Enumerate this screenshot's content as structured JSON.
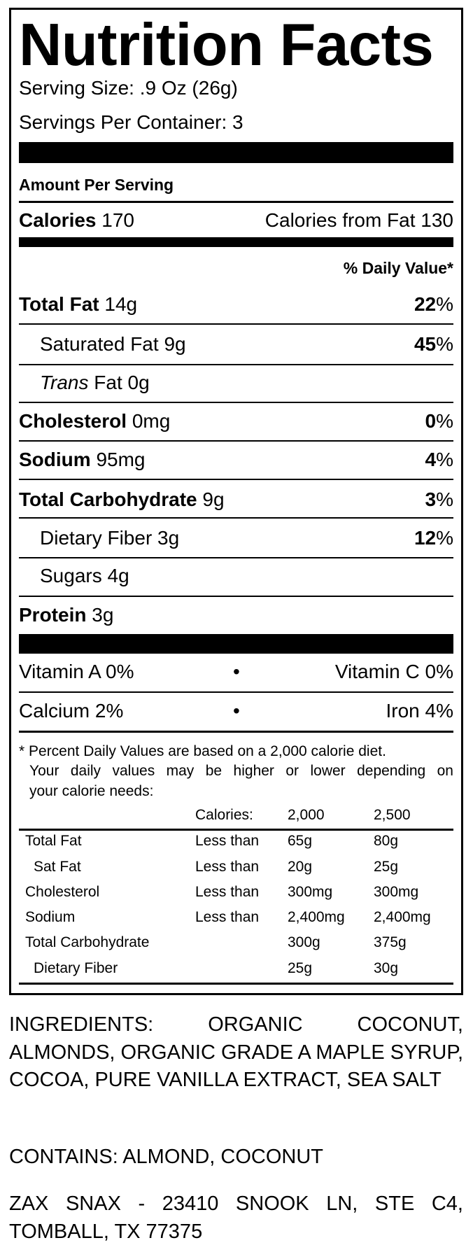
{
  "label": {
    "title": "Nutrition Facts",
    "serving_size": "Serving Size: .9 Oz (26g)",
    "servings_per_container": "Servings Per Container: 3",
    "amount_per_serving": "Amount Per Serving",
    "calories": {
      "label": "Calories",
      "value": "170",
      "from_fat": "Calories from Fat 130"
    },
    "daily_value_header": "% Daily Value*",
    "nutrients": [
      {
        "name": "Total Fat",
        "amount": "14g",
        "dv": "22",
        "bold": true
      },
      {
        "name": "Saturated Fat",
        "amount": "9g",
        "dv": "45",
        "bold": false
      },
      {
        "name": "Trans",
        "name_suffix": "Fat",
        "amount": "0g",
        "dv": "",
        "bold": false
      },
      {
        "name": "Cholesterol",
        "amount": "0mg",
        "dv": "0",
        "bold": true
      },
      {
        "name": "Sodium",
        "amount": "95mg",
        "dv": "4",
        "bold": true
      },
      {
        "name": "Total Carbohydrate",
        "amount": "9g",
        "dv": "3",
        "bold": true
      },
      {
        "name": "Dietary Fiber",
        "amount": "3g",
        "dv": "12",
        "bold": false
      },
      {
        "name": "Sugars",
        "amount": "4g",
        "dv": "",
        "bold": false
      },
      {
        "name": "Protein",
        "amount": "3g",
        "dv": "",
        "bold": true
      }
    ],
    "percent_sign": "%",
    "vitamins": [
      {
        "left": "Vitamin A 0%",
        "right": "Vitamin C 0%"
      },
      {
        "left": "Calcium 2%",
        "right": "Iron 4%"
      }
    ],
    "bullet": "•",
    "footnote": [
      "* Percent Daily Values are based on a 2,000 calorie diet.",
      "Your daily values may be higher or lower depending on",
      "your calorie needs:"
    ],
    "dv_table": {
      "header": [
        "",
        "Calories:",
        "2,000",
        "2,500"
      ],
      "rows": [
        [
          "Total Fat",
          "Less than",
          "65g",
          "80g"
        ],
        [
          "Sat Fat",
          "Less than",
          "20g",
          "25g"
        ],
        [
          "Cholesterol",
          "Less than",
          "300mg",
          "300mg"
        ],
        [
          "Sodium",
          "Less than",
          "2,400mg",
          "2,400mg"
        ],
        [
          "Total Carbohydrate",
          "",
          "300g",
          "375g"
        ],
        [
          "Dietary Fiber",
          "",
          "25g",
          "30g"
        ]
      ]
    }
  },
  "ingredients": "INGREDIENTS: ORGANIC COCONUT, ALMONDS, ORGANIC GRADE A MAPLE SYRUP, COCOA, PURE VANILLA EXTRACT, SEA SALT",
  "contains": "CONTAINS: ALMOND, COCONUT",
  "address": "ZAX SNAX - 23410 SNOOK LN, STE C4, TOMBALL, TX 77375"
}
